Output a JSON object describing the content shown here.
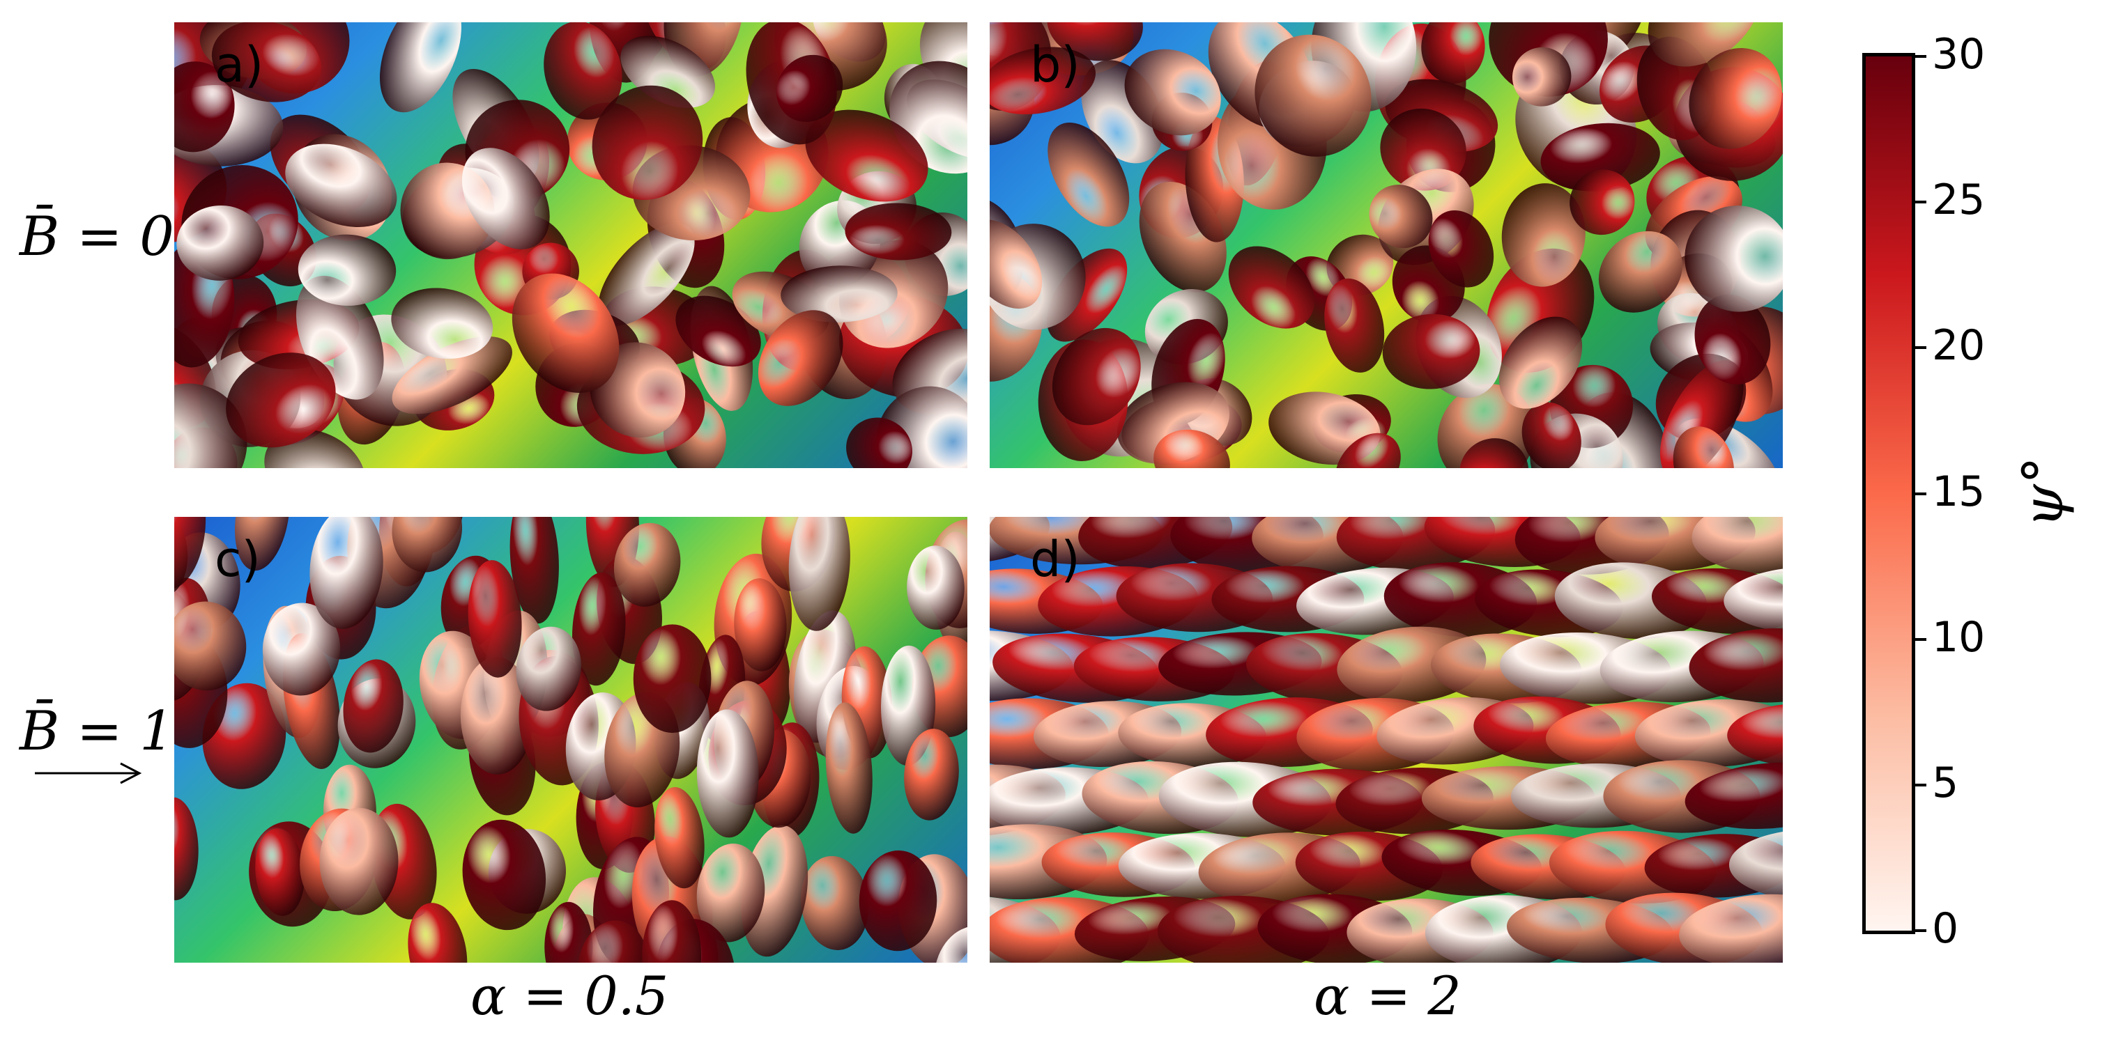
{
  "panels": [
    {
      "id": "a",
      "label": "a)"
    },
    {
      "id": "b",
      "label": "b)"
    },
    {
      "id": "c",
      "label": "c)"
    },
    {
      "id": "d",
      "label": "d)"
    }
  ],
  "row_labels": [
    "B̄ = 0",
    "B̄ = 1"
  ],
  "column_labels": [
    "α = 0.5",
    "α = 2"
  ],
  "colorbar": {
    "title": "ψ°",
    "ticks": [
      "0",
      "5",
      "10",
      "15",
      "20",
      "25",
      "30"
    ],
    "range": [
      0,
      30
    ],
    "colors": [
      "#fff5f0",
      "#fcbba1",
      "#fb6a4a",
      "#cb181d",
      "#67000d"
    ]
  },
  "field_arrow": "→"
}
